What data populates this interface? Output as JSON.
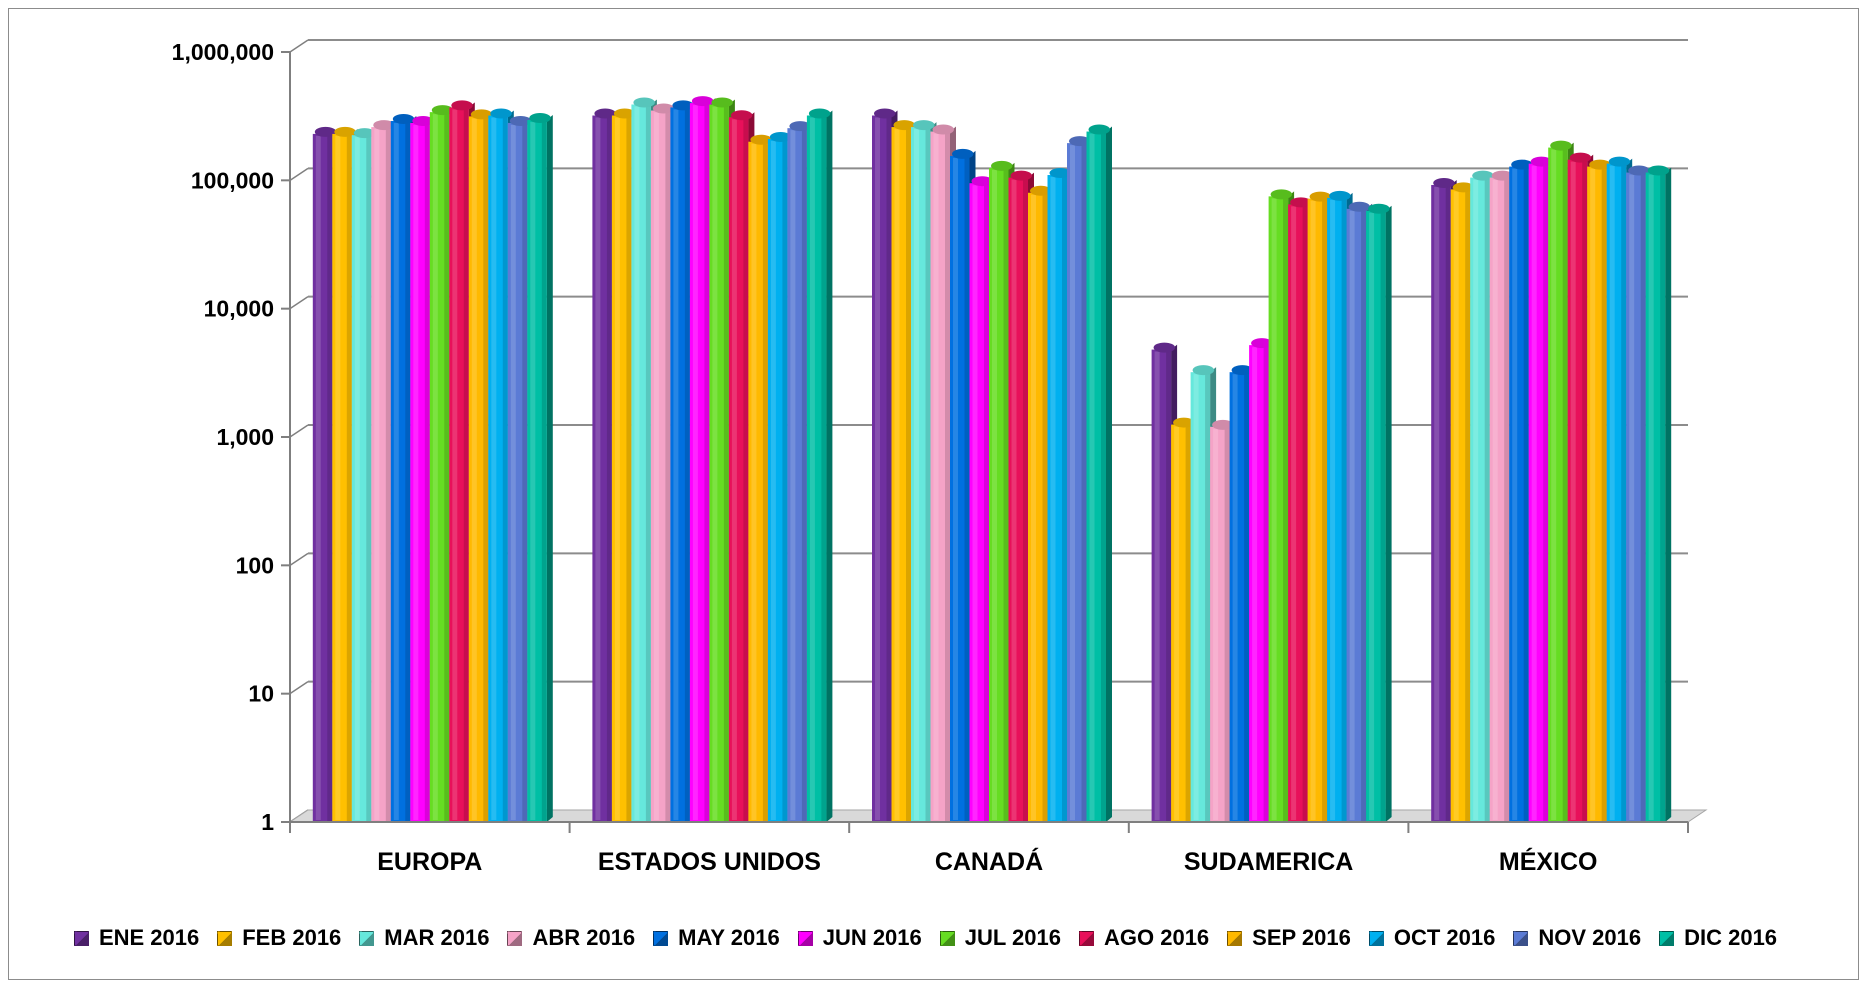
{
  "chart_data": {
    "type": "bar",
    "title": "",
    "xlabel": "",
    "ylabel": "",
    "yscale": "log",
    "ylim": [
      1,
      1000000
    ],
    "yticks": [
      1,
      10,
      100,
      1000,
      10000,
      100000,
      1000000
    ],
    "ytick_labels": [
      "1",
      "10",
      "100",
      "1,000",
      "10,000",
      "100,000",
      "1,000,000"
    ],
    "grid": true,
    "legend_position": "bottom",
    "categories": [
      "EUROPA",
      "ESTADOS UNIDOS",
      "CANADÁ",
      "SUDAMERICA",
      "MÉXICO"
    ],
    "series": [
      {
        "name": "ENE 2016",
        "color": "#7030a0",
        "values": [
          230000,
          320000,
          320000,
          4800,
          92000
        ]
      },
      {
        "name": "FEB 2016",
        "color": "#ffc000",
        "values": [
          230000,
          320000,
          260000,
          1250,
          85000
        ]
      },
      {
        "name": "MAR 2016",
        "color": "#66e8dc",
        "values": [
          225000,
          390000,
          260000,
          3200,
          105000
        ]
      },
      {
        "name": "ABR 2016",
        "color": "#f5a3c7",
        "values": [
          260000,
          350000,
          240000,
          1200,
          105000
        ]
      },
      {
        "name": "MAY 2016",
        "color": "#0070e0",
        "values": [
          290000,
          370000,
          155000,
          3200,
          128000
        ]
      },
      {
        "name": "JUN 2016",
        "color": "#ff00ff",
        "values": [
          280000,
          400000,
          95000,
          5200,
          135000
        ]
      },
      {
        "name": "JUL 2016",
        "color": "#66dd22",
        "values": [
          340000,
          390000,
          125000,
          75000,
          180000
        ]
      },
      {
        "name": "AGO 2016",
        "color": "#e8105a",
        "values": [
          370000,
          310000,
          105000,
          65000,
          145000
        ]
      },
      {
        "name": "SEP 2016",
        "color": "#ffb900",
        "values": [
          315000,
          200000,
          80000,
          72000,
          128000
        ]
      },
      {
        "name": "OCT 2016",
        "color": "#00b0f0",
        "values": [
          320000,
          210000,
          110000,
          73000,
          135000
        ]
      },
      {
        "name": "NOV 2016",
        "color": "#5b7bd5",
        "values": [
          280000,
          255000,
          195000,
          60000,
          115000
        ]
      },
      {
        "name": "DIC 2016",
        "color": "#00bfa5",
        "values": [
          295000,
          320000,
          240000,
          58000,
          115000
        ]
      }
    ]
  }
}
